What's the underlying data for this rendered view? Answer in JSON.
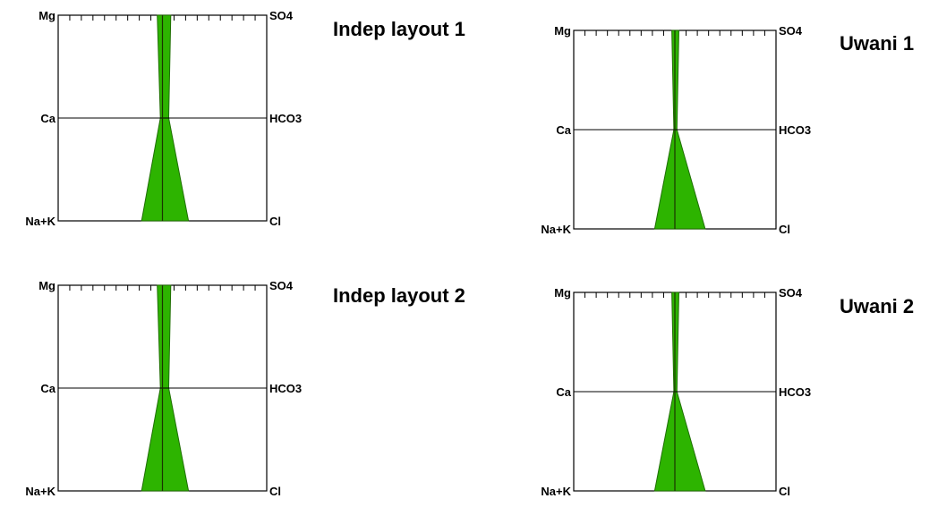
{
  "chart_data": [
    {
      "type": "stiff",
      "title": "Indep layout 1",
      "left_labels": [
        "Mg",
        "Ca",
        "Na+K"
      ],
      "right_labels": [
        "SO4",
        "HCO3",
        "Cl"
      ],
      "xlim": [
        -1,
        1
      ],
      "cations": {
        "Mg": 0.05,
        "Ca": 0.02,
        "Na+K": 0.2
      },
      "anions": {
        "SO4": 0.08,
        "HCO3": 0.06,
        "Cl": 0.25
      },
      "fill": "#2db400",
      "stroke": "#1e6e00"
    },
    {
      "type": "stiff",
      "title": "Uwani 1",
      "left_labels": [
        "Mg",
        "Ca",
        "Na+K"
      ],
      "right_labels": [
        "SO4",
        "HCO3",
        "Cl"
      ],
      "xlim": [
        -1,
        1
      ],
      "cations": {
        "Mg": 0.03,
        "Ca": 0.01,
        "Na+K": 0.2
      },
      "anions": {
        "SO4": 0.04,
        "HCO3": 0.02,
        "Cl": 0.3
      },
      "fill": "#2db400",
      "stroke": "#1e6e00"
    },
    {
      "type": "stiff",
      "title": "Indep layout 2",
      "left_labels": [
        "Mg",
        "Ca",
        "Na+K"
      ],
      "right_labels": [
        "SO4",
        "HCO3",
        "Cl"
      ],
      "xlim": [
        -1,
        1
      ],
      "cations": {
        "Mg": 0.05,
        "Ca": 0.02,
        "Na+K": 0.2
      },
      "anions": {
        "SO4": 0.08,
        "HCO3": 0.06,
        "Cl": 0.25
      },
      "fill": "#2db400",
      "stroke": "#1e6e00"
    },
    {
      "type": "stiff",
      "title": "Uwani 2",
      "left_labels": [
        "Mg",
        "Ca",
        "Na+K"
      ],
      "right_labels": [
        "SO4",
        "HCO3",
        "Cl"
      ],
      "xlim": [
        -1,
        1
      ],
      "cations": {
        "Mg": 0.03,
        "Ca": 0.01,
        "Na+K": 0.2
      },
      "anions": {
        "SO4": 0.04,
        "HCO3": 0.02,
        "Cl": 0.3
      },
      "fill": "#2db400",
      "stroke": "#1e6e00"
    }
  ]
}
